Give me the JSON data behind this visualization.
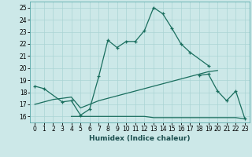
{
  "xlabel": "Humidex (Indice chaleur)",
  "bg_color": "#cce8e8",
  "grid_color": "#aad4d4",
  "line_color": "#1a6e5e",
  "ylim": [
    15.5,
    25.5
  ],
  "xlim": [
    -0.5,
    23.5
  ],
  "yticks": [
    16,
    17,
    18,
    19,
    20,
    21,
    22,
    23,
    24,
    25
  ],
  "xticks": [
    0,
    1,
    2,
    3,
    4,
    5,
    6,
    7,
    8,
    9,
    10,
    11,
    12,
    13,
    14,
    15,
    16,
    17,
    18,
    19,
    20,
    21,
    22,
    23
  ],
  "line1_x": [
    0,
    1,
    3,
    4,
    5,
    6,
    7,
    8,
    9,
    10,
    11,
    12,
    13,
    14,
    15,
    16,
    17,
    19
  ],
  "line1_y": [
    18.5,
    18.3,
    17.2,
    17.3,
    16.1,
    16.6,
    19.3,
    22.3,
    21.7,
    22.2,
    22.2,
    23.1,
    25.0,
    24.5,
    23.3,
    22.0,
    21.3,
    20.2
  ],
  "line2_x": [
    18,
    19,
    20,
    21,
    22,
    23
  ],
  "line2_y": [
    19.4,
    19.5,
    18.1,
    17.3,
    18.1,
    15.8
  ],
  "line3_x": [
    4,
    5,
    6,
    7,
    8,
    9,
    10,
    11,
    12,
    13,
    14,
    15,
    16,
    17,
    18,
    19,
    20,
    21,
    22,
    23
  ],
  "line3_y": [
    16.0,
    16.0,
    16.0,
    16.0,
    16.0,
    16.0,
    16.0,
    16.0,
    16.0,
    15.9,
    15.9,
    15.9,
    15.9,
    15.9,
    15.9,
    15.9,
    15.9,
    15.9,
    15.9,
    15.8
  ],
  "line4_x": [
    0,
    1,
    2,
    3,
    4,
    5,
    6,
    7,
    8,
    9,
    10,
    11,
    12,
    13,
    14,
    15,
    16,
    17,
    18,
    19,
    20
  ],
  "line4_y": [
    17.0,
    17.2,
    17.4,
    17.5,
    17.6,
    16.7,
    17.0,
    17.3,
    17.5,
    17.7,
    17.9,
    18.1,
    18.3,
    18.5,
    18.7,
    18.9,
    19.1,
    19.3,
    19.5,
    19.7,
    19.8
  ]
}
